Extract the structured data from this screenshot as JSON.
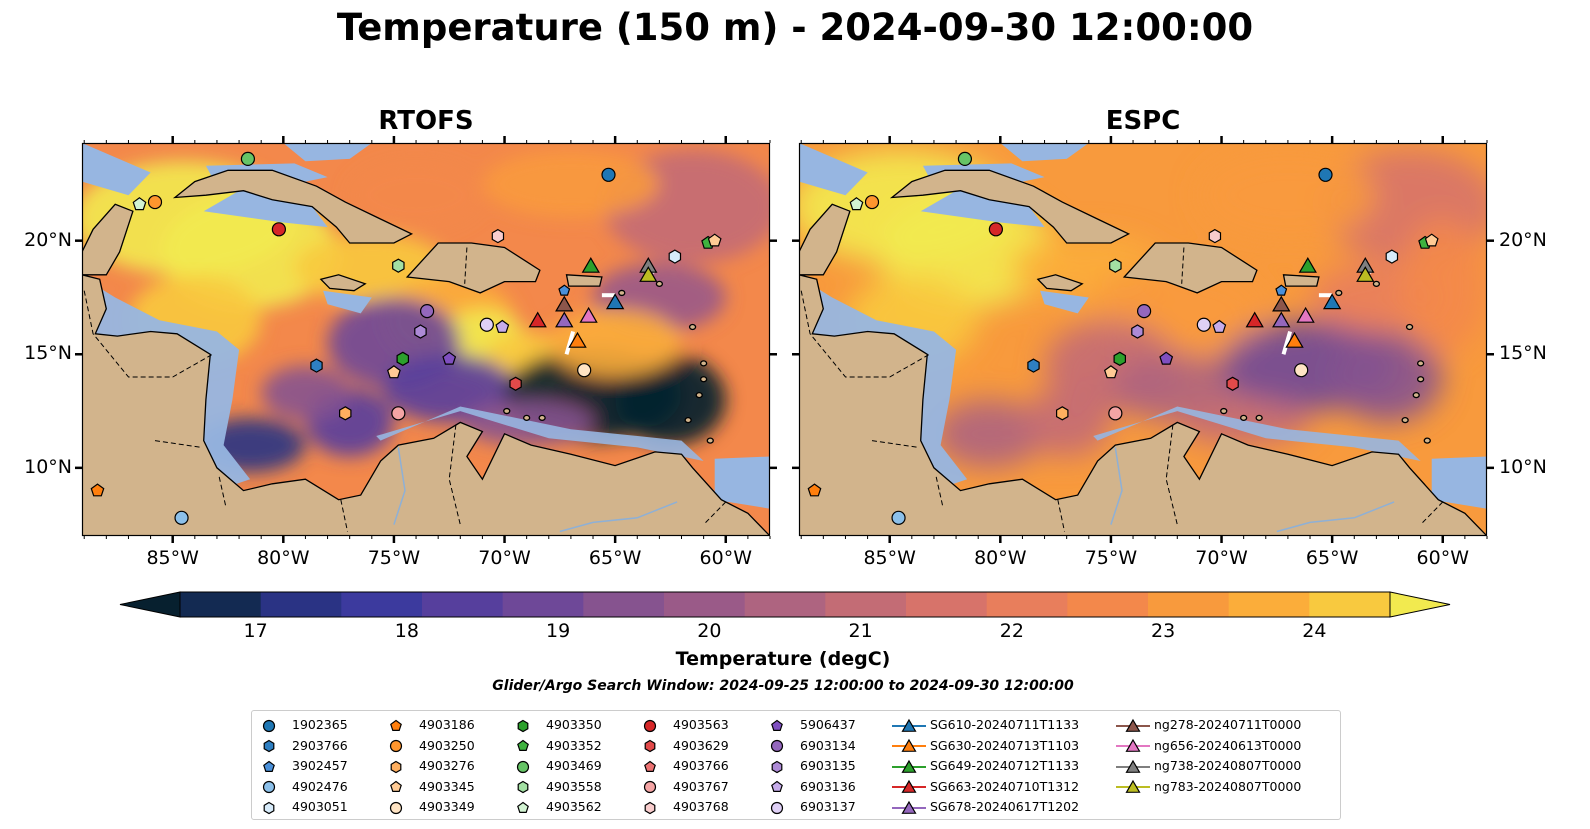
{
  "title": "Temperature (150 m) - 2024-09-30 12:00:00",
  "panels": [
    {
      "title": "RTOFS"
    },
    {
      "title": "ESPC"
    }
  ],
  "axes": {
    "lon_ticks": [
      "85°W",
      "80°W",
      "75°W",
      "70°W",
      "65°W",
      "60°W"
    ],
    "lat_ticks": [
      "20°N",
      "15°N",
      "10°N"
    ]
  },
  "colorbar": {
    "label": "Temperature (degC)",
    "ticks": [
      "17",
      "18",
      "19",
      "20",
      "21",
      "22",
      "23",
      "24"
    ],
    "min": 16.75,
    "max": 24.5,
    "step": 0.5,
    "colors": [
      "#07202f",
      "#132a52",
      "#2a3384",
      "#3c3a9e",
      "#563f9d",
      "#6e4898",
      "#86538f",
      "#9a5a88",
      "#ae6480",
      "#c36c75",
      "#d7736a",
      "#e87e5c",
      "#f3884b",
      "#f89a3d",
      "#fbad3a",
      "#f8c93f",
      "#f2ea4f"
    ]
  },
  "search_window": "Glider/Argo Search Window: 2024-09-25 12:00:00 to 2024-09-30 12:00:00",
  "land_color": "#d2b48c",
  "shelf_color": "#97b6e1",
  "legend": {
    "columns": [
      [
        {
          "label": "1902365",
          "marker": "circle",
          "color": "#1f77b4"
        },
        {
          "label": "2903766",
          "marker": "hexagon",
          "color": "#2e7fc2"
        },
        {
          "label": "3902457",
          "marker": "pentagon",
          "color": "#4a90d9"
        },
        {
          "label": "4902476",
          "marker": "circle",
          "color": "#8cc0ea"
        },
        {
          "label": "4903051",
          "marker": "hexagon",
          "color": "#d7ebfa"
        }
      ],
      [
        {
          "label": "4903186",
          "marker": "pentagon",
          "color": "#ff7f0e"
        },
        {
          "label": "4903250",
          "marker": "circle",
          "color": "#ff962e"
        },
        {
          "label": "4903276",
          "marker": "hexagon",
          "color": "#ffaf5f"
        },
        {
          "label": "4903345",
          "marker": "pentagon",
          "color": "#ffcb95"
        },
        {
          "label": "4903349",
          "marker": "circle",
          "color": "#ffe4c4"
        }
      ],
      [
        {
          "label": "4903350",
          "marker": "hexagon",
          "color": "#2ca02c"
        },
        {
          "label": "4903352",
          "marker": "pentagon",
          "color": "#3fb23f"
        },
        {
          "label": "4903469",
          "marker": "circle",
          "color": "#66c466"
        },
        {
          "label": "4903558",
          "marker": "hexagon",
          "color": "#a3e0a3"
        },
        {
          "label": "4903562",
          "marker": "pentagon",
          "color": "#d2f3d2"
        }
      ],
      [
        {
          "label": "4903563",
          "marker": "circle",
          "color": "#d62728"
        },
        {
          "label": "4903629",
          "marker": "hexagon",
          "color": "#e24a4a"
        },
        {
          "label": "4903766",
          "marker": "pentagon",
          "color": "#ec7272"
        },
        {
          "label": "4903767",
          "marker": "circle",
          "color": "#f4a4a4"
        },
        {
          "label": "4903768",
          "marker": "hexagon",
          "color": "#f9cdcd"
        }
      ],
      [
        {
          "label": "5906437",
          "marker": "pentagon",
          "color": "#7f4fc0"
        },
        {
          "label": "6903134",
          "marker": "circle",
          "color": "#9467bd"
        },
        {
          "label": "6903135",
          "marker": "hexagon",
          "color": "#ad8ad6"
        },
        {
          "label": "6903136",
          "marker": "pentagon",
          "color": "#c6acea"
        },
        {
          "label": "6903137",
          "marker": "circle",
          "color": "#dfd0f6"
        }
      ],
      [
        {
          "label": "SG610-20240711T1133",
          "marker": "triangle",
          "color": "#1f77b4"
        },
        {
          "label": "SG630-20240713T1103",
          "marker": "triangle",
          "color": "#ff7f0e"
        },
        {
          "label": "SG649-20240712T1133",
          "marker": "triangle",
          "color": "#2ca02c"
        },
        {
          "label": "SG663-20240710T1312",
          "marker": "triangle",
          "color": "#d62728"
        },
        {
          "label": "SG678-20240617T1202",
          "marker": "triangle",
          "color": "#9467bd"
        }
      ],
      [
        {
          "label": "ng278-20240711T0000",
          "marker": "triangle",
          "color": "#8c564b"
        },
        {
          "label": "ng656-20240613T0000",
          "marker": "triangle",
          "color": "#e377c2"
        },
        {
          "label": "ng738-20240807T0000",
          "marker": "triangle",
          "color": "#7f7f7f"
        },
        {
          "label": "ng783-20240807T0000",
          "marker": "triangle",
          "color": "#bcbd22"
        }
      ]
    ]
  }
}
